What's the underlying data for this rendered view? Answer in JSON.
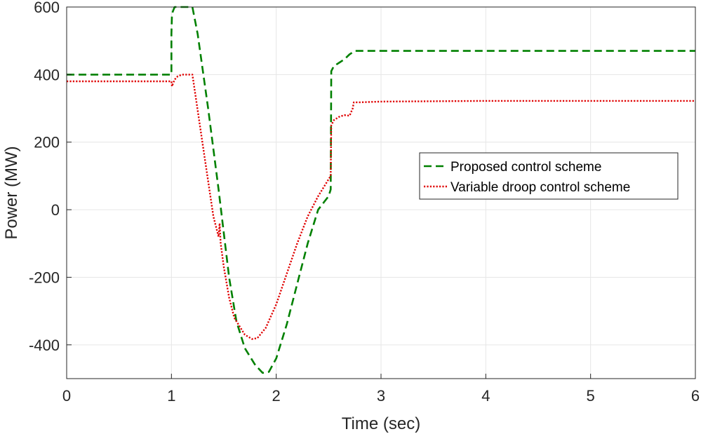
{
  "chart_data": {
    "type": "line",
    "xlabel": "Time (sec)",
    "ylabel": "Power (MW)",
    "xlim": [
      0,
      6
    ],
    "ylim": [
      -500,
      600
    ],
    "xticks": [
      0,
      1,
      2,
      3,
      4,
      5,
      6
    ],
    "yticks": [
      -400,
      -200,
      0,
      200,
      400,
      600
    ],
    "xtick_labels": [
      "0",
      "1",
      "2",
      "3",
      "4",
      "5",
      "6"
    ],
    "ytick_labels": [
      "-400",
      "-200",
      "0",
      "200",
      "400",
      "600"
    ],
    "grid": true,
    "legend_position": "right",
    "series": [
      {
        "name": "Proposed control scheme",
        "color": "#008000",
        "dash": "dashed",
        "x": [
          0,
          1.0,
          1.0,
          1.005,
          1.03,
          1.07,
          1.2,
          1.25,
          1.35,
          1.45,
          1.55,
          1.62,
          1.7,
          1.8,
          1.87,
          1.93,
          2.0,
          2.1,
          2.2,
          2.3,
          2.4,
          2.5,
          2.52,
          2.525,
          2.55,
          2.6,
          2.65,
          2.7,
          2.75,
          3.0,
          4.0,
          5.0,
          6.0
        ],
        "y": [
          400,
          400,
          520,
          580,
          600,
          600,
          600,
          520,
          300,
          60,
          -200,
          -330,
          -410,
          -460,
          -483,
          -480,
          -440,
          -340,
          -220,
          -100,
          0,
          40,
          60,
          410,
          425,
          435,
          445,
          460,
          470,
          470,
          470,
          470,
          470
        ]
      },
      {
        "name": "Variable droop control scheme",
        "color": "#e00000",
        "dash": "dotted",
        "x": [
          0,
          1.0,
          1.005,
          1.03,
          1.06,
          1.1,
          1.2,
          1.3,
          1.4,
          1.45,
          1.46,
          1.47,
          1.5,
          1.55,
          1.6,
          1.7,
          1.77,
          1.82,
          1.9,
          2.0,
          2.1,
          2.2,
          2.3,
          2.4,
          2.5,
          2.52,
          2.525,
          2.55,
          2.6,
          2.65,
          2.7,
          2.73,
          2.74,
          2.8,
          3.0,
          4.0,
          5.0,
          6.0
        ],
        "y": [
          380,
          380,
          365,
          385,
          395,
          400,
          400,
          190,
          -20,
          -80,
          -40,
          -100,
          -170,
          -260,
          -320,
          -370,
          -383,
          -380,
          -350,
          -280,
          -190,
          -100,
          -20,
          40,
          90,
          100,
          250,
          265,
          275,
          280,
          278,
          300,
          318,
          318,
          320,
          322,
          322,
          322
        ]
      }
    ]
  }
}
